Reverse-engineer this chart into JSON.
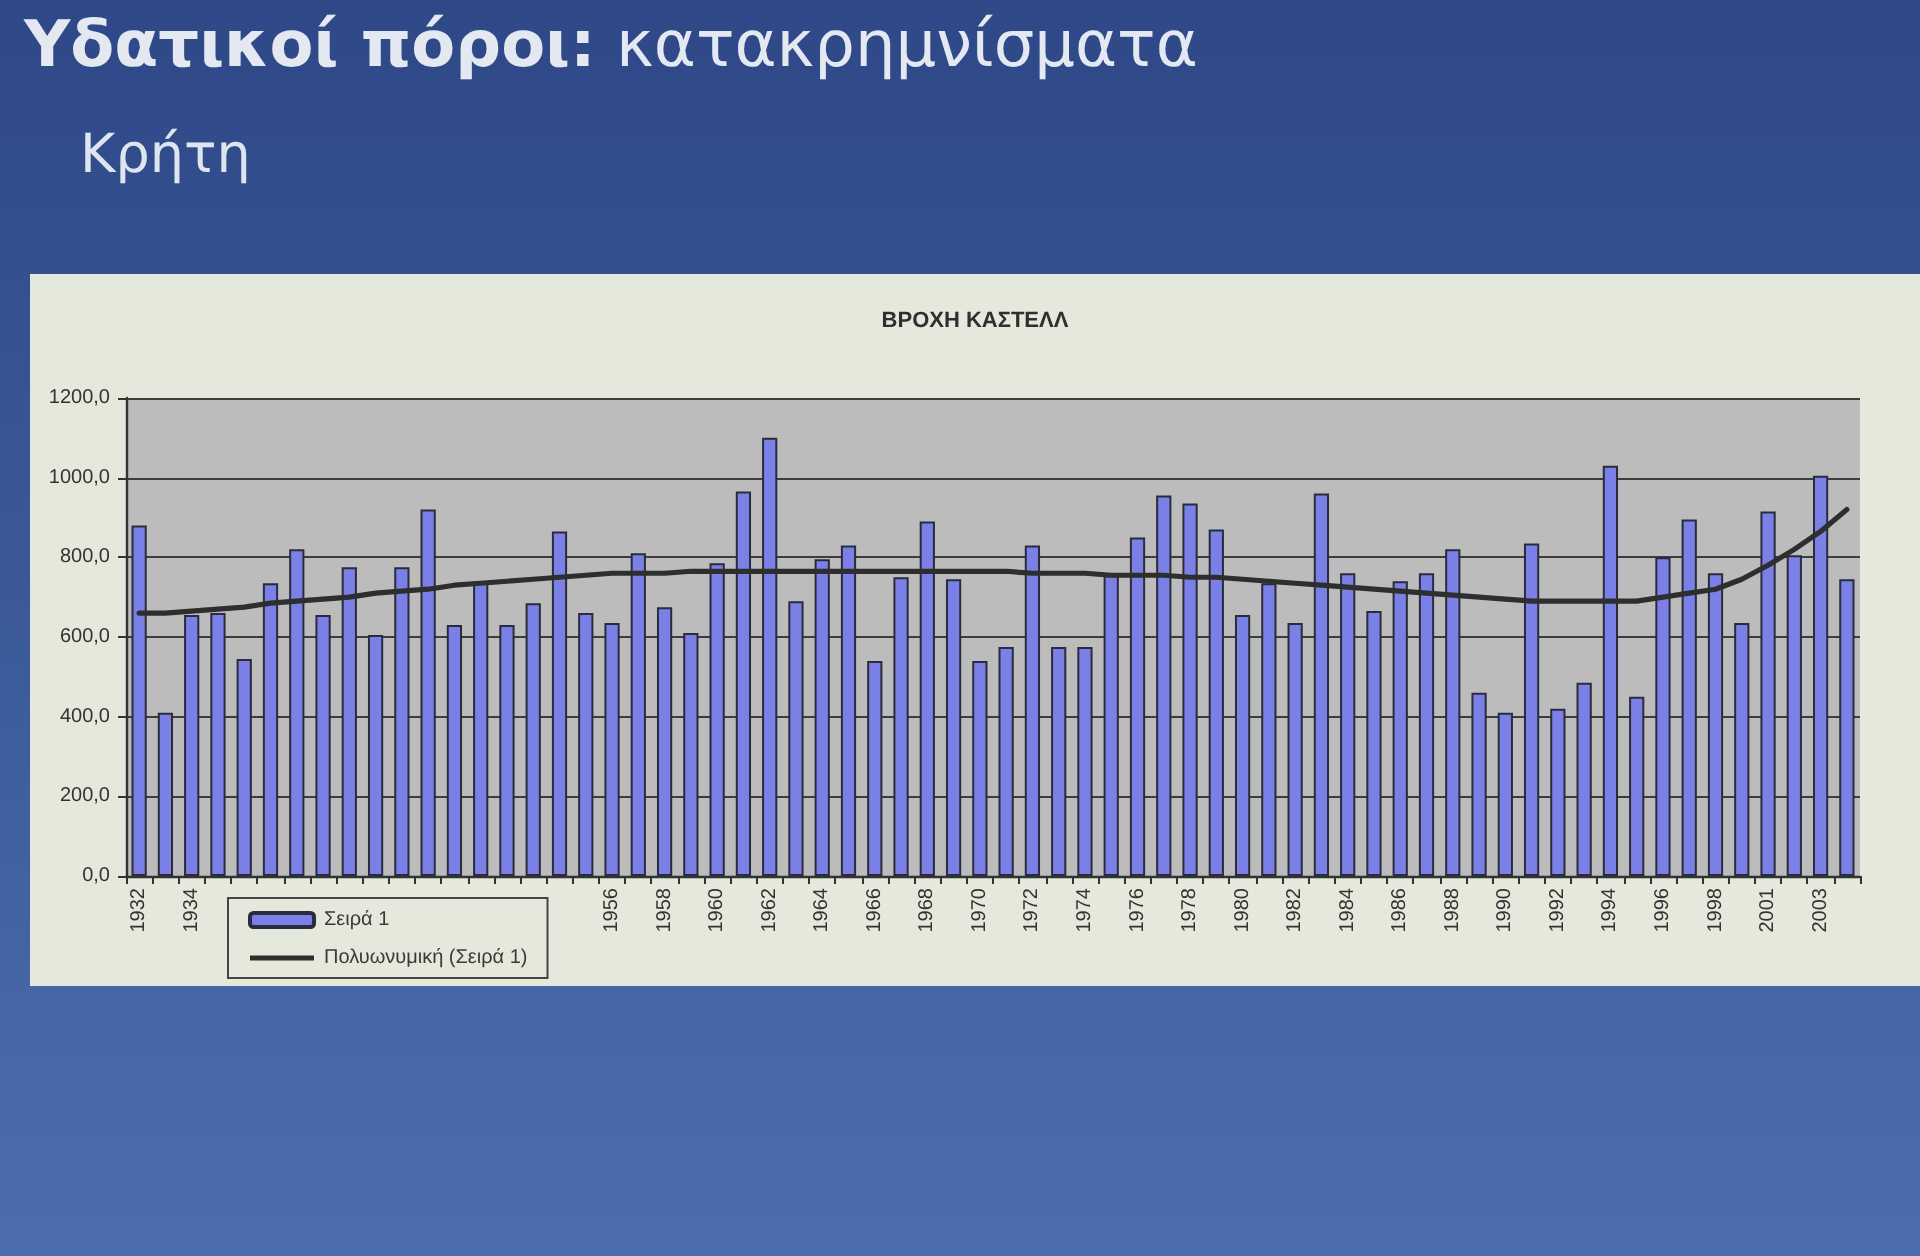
{
  "chart_data": {
    "type": "bar",
    "title": "Υδατικοί πόροι: κατακρημνίσματα",
    "subtitle": "Κρήτη",
    "annotations": [
      "ΒΡΟΧΗ ΚΑΣΤΕΛΛ"
    ],
    "categories": [
      "1932",
      null,
      "1934",
      null,
      null,
      null,
      null,
      null,
      null,
      null,
      null,
      null,
      null,
      null,
      null,
      null,
      null,
      null,
      "1956",
      null,
      "1958",
      null,
      "1960",
      null,
      "1962",
      null,
      "1964",
      null,
      "1966",
      null,
      "1968",
      null,
      "1970",
      null,
      "1972",
      null,
      "1974",
      null,
      "1976",
      null,
      "1978",
      null,
      "1980",
      null,
      "1982",
      null,
      "1984",
      null,
      "1986",
      null,
      "1988",
      null,
      "1990",
      null,
      "1992",
      null,
      "1994",
      null,
      "1996",
      null,
      "1998",
      null,
      "2001",
      null,
      "2003",
      null
    ],
    "series": [
      {
        "name": "Σειρά 1",
        "color": "#7b80e6",
        "values": [
          880,
          410,
          655,
          660,
          545,
          735,
          820,
          655,
          775,
          605,
          775,
          920,
          630,
          740,
          630,
          685,
          865,
          660,
          635,
          810,
          675,
          610,
          785,
          965,
          1100,
          690,
          795,
          830,
          540,
          750,
          890,
          745,
          540,
          575,
          830,
          575,
          575,
          755,
          850,
          955,
          935,
          870,
          655,
          735,
          635,
          960,
          760,
          665,
          740,
          760,
          820,
          460,
          410,
          835,
          420,
          485,
          1030,
          450,
          800,
          895,
          760,
          635,
          915,
          805,
          1005,
          745
        ]
      },
      {
        "name": "Πολυωνυμική (Σειρά 1)",
        "type": "line",
        "color": "#2e2e2e",
        "values": [
          660,
          660,
          665,
          670,
          675,
          685,
          690,
          695,
          700,
          710,
          715,
          720,
          730,
          735,
          740,
          745,
          750,
          755,
          760,
          760,
          760,
          765,
          765,
          765,
          765,
          765,
          765,
          765,
          765,
          765,
          765,
          765,
          765,
          765,
          760,
          760,
          760,
          755,
          755,
          755,
          750,
          750,
          745,
          740,
          735,
          730,
          725,
          720,
          715,
          710,
          705,
          700,
          695,
          690,
          690,
          690,
          690,
          690,
          700,
          710,
          720,
          745,
          780,
          820,
          865,
          920
        ]
      }
    ],
    "ylim": [
      0,
      1200
    ],
    "yticks": [
      {
        "value": 0,
        "label": "0,0"
      },
      {
        "value": 200,
        "label": "200,0"
      },
      {
        "value": 400,
        "label": "400,0"
      },
      {
        "value": 600,
        "label": "600,0"
      },
      {
        "value": 800,
        "label": "800,0"
      },
      {
        "value": 1000,
        "label": "1000,0"
      },
      {
        "value": 1200,
        "label": "1200,0"
      }
    ],
    "grid": "y",
    "legend": "bottom left"
  }
}
